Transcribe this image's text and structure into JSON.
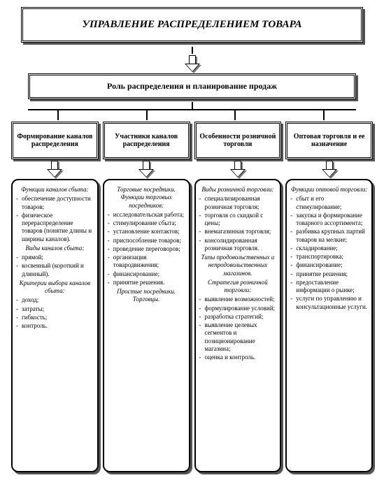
{
  "type": "flowchart",
  "background_color": "#ffffff",
  "border_color": "#000000",
  "shadow_color": "#555555",
  "font_family": "Times New Roman",
  "title": "УПРАВЛЕНИЕ РАСПРЕДЕЛЕНИЕМ ТОВАРА",
  "subtitle": "Роль распределения и планирование продаж",
  "branches": [
    {
      "title": "Формирование каналов распределения",
      "sections": [
        {
          "heading": "Функции каналов сбыта:",
          "items": [
            "обеспечение доступности товаров;",
            "физическое перераспределение товаров (понятие длины и ширины каналов)."
          ]
        },
        {
          "heading": "Виды каналов сбыта:",
          "items": [
            "прямой;",
            "косвенный (короткий и длинный)."
          ]
        },
        {
          "heading": "Критерии выбора каналов сбыта:",
          "items": [
            "доход;",
            "затраты;",
            "гибкость;",
            "контроль."
          ]
        }
      ]
    },
    {
      "title": "Участники каналов распределения",
      "sections": [
        {
          "heading": "Торговые посредники. Функции торговых посредников:",
          "items": [
            "исследовательская работа;",
            "стимулирование сбыта;",
            "установление контактов;",
            "приспособление товаров;",
            "проведение переговоров;",
            "организация товародвижения;",
            "финансирование;",
            "принятие решения."
          ]
        },
        {
          "heading": "Простые посредники. Торговцы.",
          "items": []
        }
      ]
    },
    {
      "title": "Особенности розничной торговли",
      "sections": [
        {
          "heading": "Виды розничной торговли:",
          "items": [
            "специализированная розничная торговля;",
            "торговля со скидкой с цены;",
            "внемагазинная торговля;",
            "консолидированная розничная торговля."
          ]
        },
        {
          "heading": "Типы продовольственных и непродовольственных магазинов.",
          "items": []
        },
        {
          "heading": "Стратегия розничной торговли:",
          "items": [
            "выявление возможностей;",
            "формулирование условий;",
            "разработка стратегий;",
            "выявление целевых сегментов и позиционирование магазина;",
            "оценка и контроль."
          ]
        }
      ]
    },
    {
      "title": "Оптовая торговля и ее назначение",
      "sections": [
        {
          "heading": "Функции оптовой торговли:",
          "items": [
            "сбыт и его стимулирование;",
            "закупка и формирование товарного ассортимента;",
            "разбивка крупных партий товаров на мелкие;",
            "складирование;",
            "транспортировка;",
            "финансирование;",
            "принятие решения;",
            "предоставление информации о рынке;",
            "услуги по управлению и консультационные услуги."
          ]
        }
      ]
    }
  ]
}
